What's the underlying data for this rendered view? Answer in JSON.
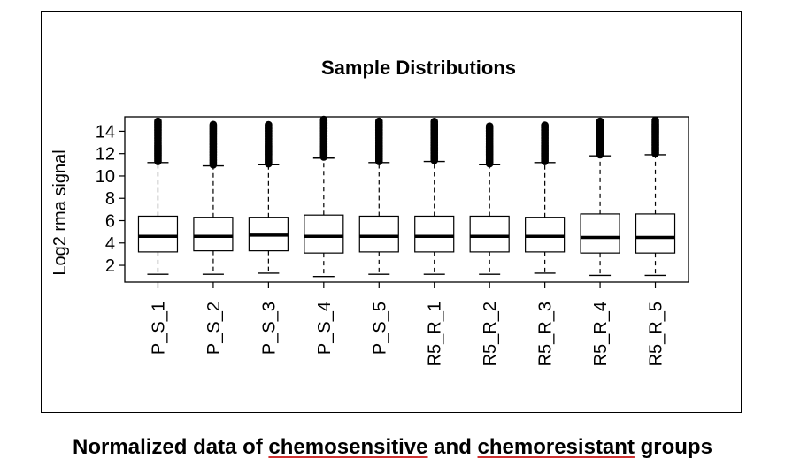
{
  "chart_data": {
    "type": "box",
    "title": "Sample Distributions",
    "xlabel": "",
    "ylabel": "Log2 rma signal",
    "yticks": [
      2,
      4,
      6,
      8,
      10,
      12,
      14
    ],
    "ylim": [
      0.5,
      15.3
    ],
    "categories": [
      "P_S_1",
      "P_S_2",
      "P_S_3",
      "P_S_4",
      "P_S_5",
      "R5_R_1",
      "R5_R_2",
      "R5_R_3",
      "R5_R_4",
      "R5_R_5"
    ],
    "boxes": [
      {
        "whisker_low": 1.2,
        "q1": 3.2,
        "median": 4.6,
        "q3": 6.4,
        "whisker_high": 11.2,
        "outlier_max": 15.0
      },
      {
        "whisker_low": 1.2,
        "q1": 3.3,
        "median": 4.6,
        "q3": 6.3,
        "whisker_high": 10.9,
        "outlier_max": 14.7
      },
      {
        "whisker_low": 1.3,
        "q1": 3.3,
        "median": 4.7,
        "q3": 6.3,
        "whisker_high": 11.0,
        "outlier_max": 14.6
      },
      {
        "whisker_low": 1.0,
        "q1": 3.1,
        "median": 4.6,
        "q3": 6.5,
        "whisker_high": 11.6,
        "outlier_max": 15.1
      },
      {
        "whisker_low": 1.2,
        "q1": 3.2,
        "median": 4.6,
        "q3": 6.4,
        "whisker_high": 11.2,
        "outlier_max": 14.9
      },
      {
        "whisker_low": 1.2,
        "q1": 3.2,
        "median": 4.6,
        "q3": 6.4,
        "whisker_high": 11.3,
        "outlier_max": 14.9
      },
      {
        "whisker_low": 1.2,
        "q1": 3.2,
        "median": 4.6,
        "q3": 6.4,
        "whisker_high": 11.0,
        "outlier_max": 14.5
      },
      {
        "whisker_low": 1.3,
        "q1": 3.2,
        "median": 4.6,
        "q3": 6.3,
        "whisker_high": 11.2,
        "outlier_max": 14.6
      },
      {
        "whisker_low": 1.1,
        "q1": 3.1,
        "median": 4.5,
        "q3": 6.6,
        "whisker_high": 11.8,
        "outlier_max": 15.0
      },
      {
        "whisker_low": 1.1,
        "q1": 3.1,
        "median": 4.5,
        "q3": 6.6,
        "whisker_high": 11.9,
        "outlier_max": 15.0
      }
    ],
    "grid": false,
    "legend": "none"
  },
  "caption": {
    "part1": "Normalized data of ",
    "word1": "chemosensitive",
    "part2": " and ",
    "word2": "chemoresistant",
    "part3": " groups"
  }
}
